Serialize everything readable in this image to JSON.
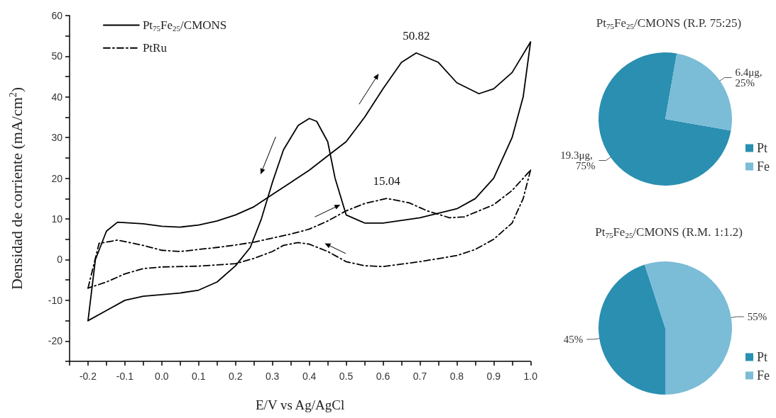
{
  "chart_data": [
    {
      "type": "line",
      "xlabel": "E/V vs Ag/AgCl",
      "ylabel": "Densidad de corriente (mA/cm$^{2}$)",
      "xlim": [
        -0.25,
        1.0
      ],
      "ylim": [
        -25,
        60
      ],
      "xticks": [
        {
          "value": -0.25,
          "label": null
        },
        {
          "value": -0.2,
          "label": "-0.2"
        },
        {
          "value": -0.15,
          "label": null
        },
        {
          "value": -0.1,
          "label": "-0.1"
        },
        {
          "value": -0.05,
          "label": null
        },
        {
          "value": 0,
          "label": "0.0"
        },
        {
          "value": 0.05,
          "label": null
        },
        {
          "value": 0.1,
          "label": "0.1"
        },
        {
          "value": 0.15,
          "label": null
        },
        {
          "value": 0.2,
          "label": "0.2"
        },
        {
          "value": 0.25,
          "label": null
        },
        {
          "value": 0.3,
          "label": "0.3"
        },
        {
          "value": 0.35,
          "label": null
        },
        {
          "value": 0.4,
          "label": "0.4"
        },
        {
          "value": 0.45,
          "label": null
        },
        {
          "value": 0.5,
          "label": "0.5"
        },
        {
          "value": 0.55,
          "label": null
        },
        {
          "value": 0.6,
          "label": "0.6"
        },
        {
          "value": 0.65,
          "label": null
        },
        {
          "value": 0.7,
          "label": "0.7"
        },
        {
          "value": 0.75,
          "label": null
        },
        {
          "value": 0.8,
          "label": "0.8"
        },
        {
          "value": 0.85,
          "label": null
        },
        {
          "value": 0.9,
          "label": "0.9"
        },
        {
          "value": 0.95,
          "label": null
        },
        {
          "value": 1.0,
          "label": "1.0"
        }
      ],
      "yticks": [
        {
          "value": -25,
          "label": null
        },
        -20,
        {
          "value": -15,
          "label": null
        },
        -10,
        {
          "value": -5,
          "label": null
        },
        0,
        {
          "value": 5,
          "label": null
        },
        10,
        {
          "value": 15,
          "label": null
        },
        20,
        {
          "value": 25,
          "label": null
        },
        30,
        {
          "value": 35,
          "label": null
        },
        40,
        {
          "value": 45,
          "label": null
        },
        50,
        {
          "value": 55,
          "label": null
        },
        60
      ],
      "grid": false,
      "legend": "top left",
      "marker": "none",
      "series": [
        {
          "name": "Pt$_{75}$Fe$_{25}$/CMONS",
          "color": "#000000",
          "line_style": "solid",
          "x": [
            -0.2,
            -0.18,
            -0.15,
            -0.12,
            -0.05,
            0.0,
            0.05,
            0.1,
            0.15,
            0.2,
            0.25,
            0.3,
            0.35,
            0.4,
            0.45,
            0.5,
            0.55,
            0.6,
            0.65,
            0.69,
            0.75,
            0.8,
            0.86,
            0.9,
            0.95,
            1.0
          ],
          "values": [
            -15,
            0,
            7,
            9.2,
            8.8,
            8.2,
            8.0,
            8.5,
            9.5,
            11,
            13,
            16,
            19,
            22,
            25.5,
            29,
            35,
            42,
            48.5,
            50.82,
            48.5,
            43.5,
            40.8,
            42,
            46,
            53.5
          ]
        },
        {
          "color": "#000000",
          "line_style": "solid",
          "x": [
            1.0,
            0.98,
            0.95,
            0.9,
            0.85,
            0.8,
            0.7,
            0.6,
            0.55,
            0.5,
            0.47,
            0.45,
            0.42,
            0.4,
            0.37,
            0.33,
            0.3,
            0.27,
            0.24,
            0.2,
            0.15,
            0.1,
            0.05,
            0.0,
            -0.05,
            -0.1,
            -0.15,
            -0.2
          ],
          "values": [
            53.5,
            40,
            30,
            20,
            15,
            12.5,
            10.3,
            9,
            9,
            11,
            20,
            29,
            34,
            34.7,
            33,
            27,
            19,
            10,
            3,
            -1.5,
            -5.5,
            -7.5,
            -8.2,
            -8.6,
            -9,
            -10,
            -12.5,
            -15
          ]
        },
        {
          "name": "PtRu",
          "color": "#000000",
          "line_style": "dashed",
          "x": [
            -0.2,
            -0.17,
            -0.12,
            -0.05,
            0.0,
            0.05,
            0.1,
            0.15,
            0.2,
            0.25,
            0.3,
            0.35,
            0.4,
            0.45,
            0.5,
            0.55,
            0.61,
            0.67,
            0.72,
            0.78,
            0.82,
            0.9,
            0.95,
            1.0
          ],
          "values": [
            -7,
            4,
            4.8,
            3.5,
            2.3,
            2.0,
            2.5,
            3,
            3.6,
            4.3,
            5.3,
            6.3,
            7.5,
            9.5,
            12,
            13.8,
            15.04,
            14,
            12,
            10.3,
            10.5,
            13.5,
            17,
            22
          ]
        },
        {
          "color": "#000000",
          "line_style": "dashed",
          "x": [
            1.0,
            0.98,
            0.95,
            0.9,
            0.85,
            0.8,
            0.7,
            0.6,
            0.55,
            0.5,
            0.45,
            0.4,
            0.37,
            0.33,
            0.3,
            0.25,
            0.2,
            0.1,
            0.0,
            -0.05,
            -0.1,
            -0.15,
            -0.2
          ],
          "values": [
            22,
            15,
            9,
            5,
            2.5,
            1,
            -0.5,
            -1.7,
            -1.5,
            -0.5,
            2,
            3.8,
            4.2,
            3.5,
            2,
            0.3,
            -1,
            -1.6,
            -1.8,
            -2.2,
            -3.5,
            -5.5,
            -7
          ]
        }
      ],
      "annotations": [
        {
          "text": "50.82",
          "x": 0.69,
          "y": 50.82
        },
        {
          "text": "15.04",
          "x": 0.61,
          "y": 15.04
        }
      ]
    },
    {
      "type": "pie",
      "title": "Pt$_{75}$Fe$_{25}$/CMONS (R.P. 75:25)",
      "categories": [
        "Pt",
        "Fe"
      ],
      "values": [
        75,
        25
      ],
      "colors": [
        "#2a8fb0",
        "#7bbcd6"
      ],
      "value_labels": [
        "19.3μg, 75%",
        "6.4μg, 25%"
      ],
      "legend": "right"
    },
    {
      "type": "pie",
      "title": "Pt$_{75}$Fe$_{25}$/CMONS (R.M. 1:1.2)",
      "categories": [
        "Pt",
        "Fe"
      ],
      "values": [
        45,
        55
      ],
      "colors": [
        "#2a8fb0",
        "#7bbcd6"
      ],
      "value_labels": [
        "45%",
        "55%"
      ],
      "legend": "right"
    }
  ]
}
